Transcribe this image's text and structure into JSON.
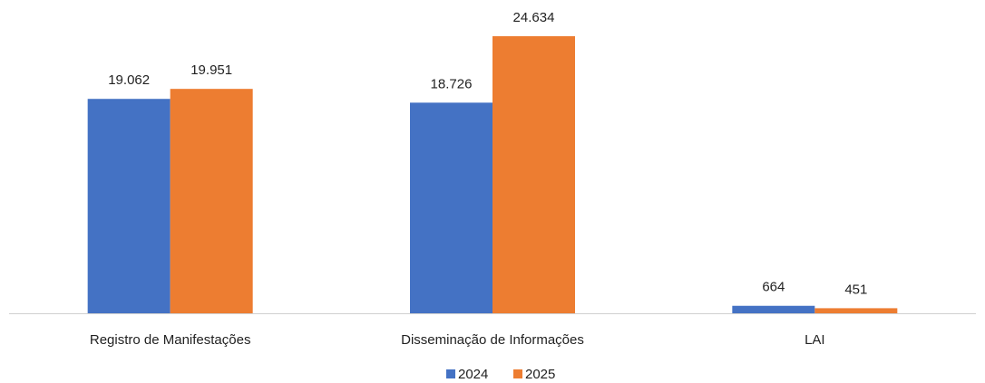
{
  "chart_data": {
    "type": "bar",
    "categories": [
      "Registro de Manifestações",
      "Disseminação de Informações",
      "LAI"
    ],
    "series": [
      {
        "name": "2024",
        "color": "#4472c4",
        "values": [
          19062,
          18726,
          664
        ],
        "value_labels": [
          "19.062",
          "18.726",
          "664"
        ]
      },
      {
        "name": "2025",
        "color": "#ed7d31",
        "values": [
          19951,
          24634,
          451
        ],
        "value_labels": [
          "19.951",
          "24.634",
          "451"
        ]
      }
    ]
  }
}
